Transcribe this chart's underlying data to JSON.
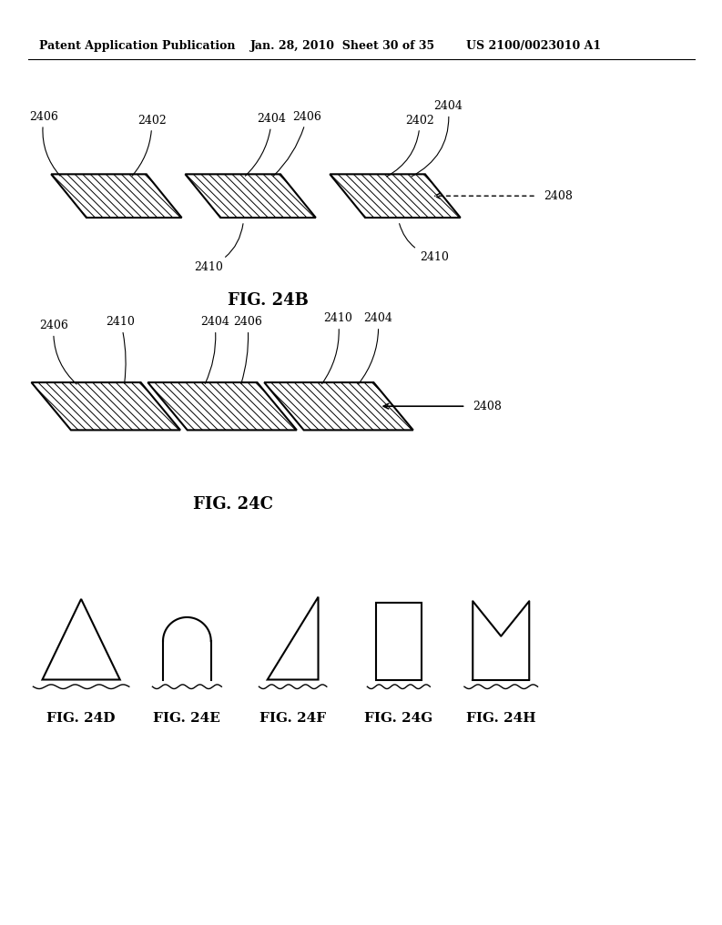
{
  "bg_color": "#ffffff",
  "header_left": "Patent Application Publication",
  "header_mid": "Jan. 28, 2010  Sheet 30 of 35",
  "header_right": "US 2100/0023010 A1",
  "fig24b_label": "FIG. 24B",
  "fig24c_label": "FIG. 24C",
  "fig24d_label": "FIG. 24D",
  "fig24e_label": "FIG. 24E",
  "fig24f_label": "FIG. 24F",
  "fig24g_label": "FIG. 24G",
  "fig24h_label": "FIG. 24H"
}
